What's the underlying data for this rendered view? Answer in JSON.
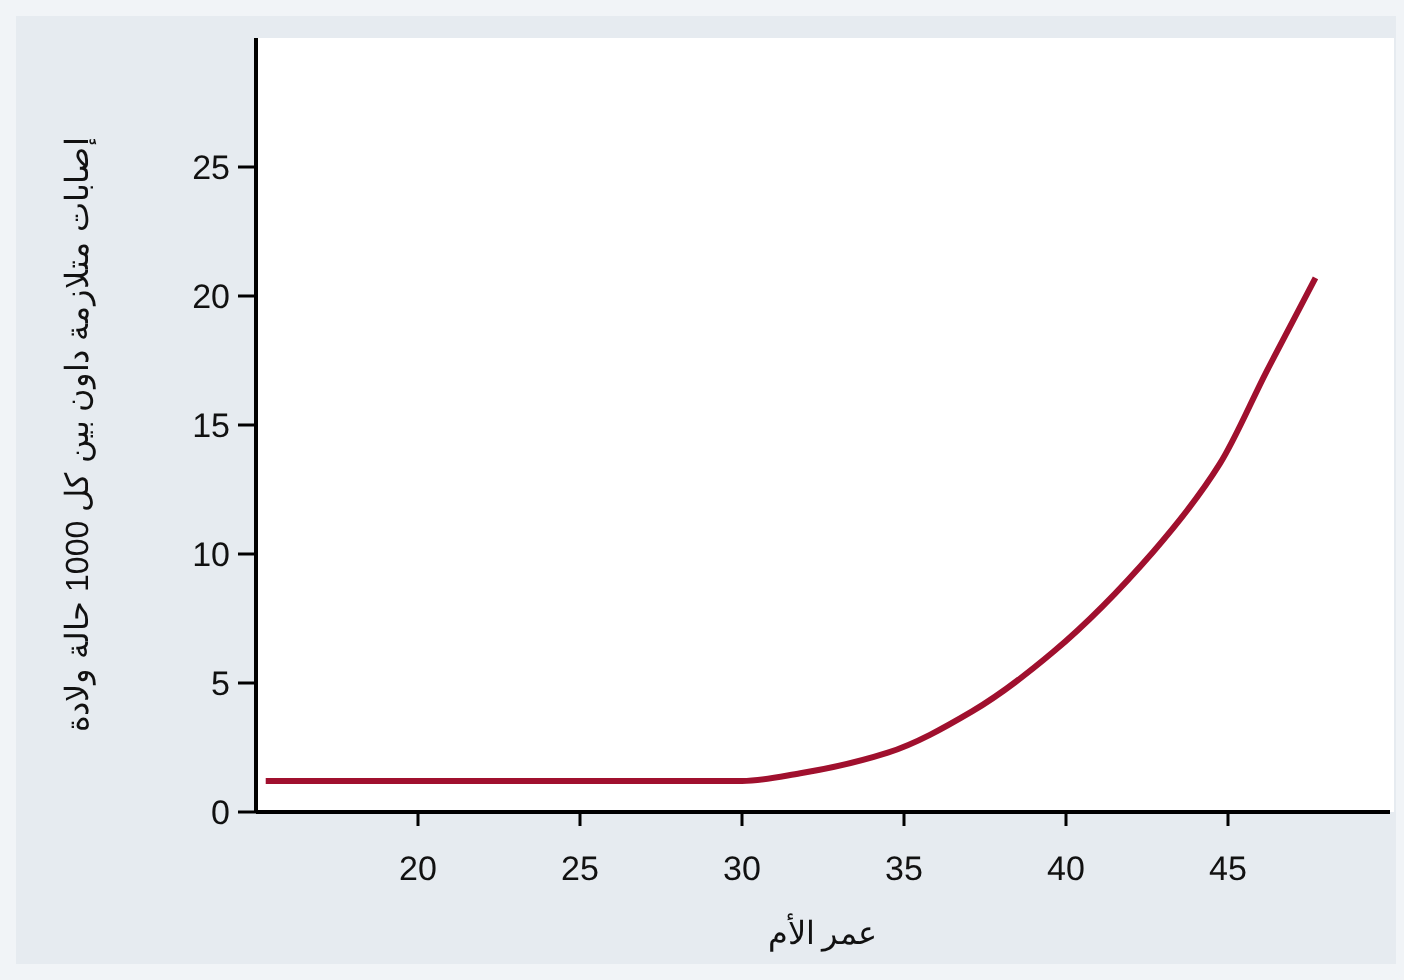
{
  "chart_data": {
    "type": "line",
    "xlabel": "عمر الأم",
    "ylabel": "إصابات متلازمة داون بين كل 1000 حالة ولادة",
    "x": [
      15.3,
      30,
      31.8,
      34.5,
      37.1,
      39.6,
      42.7,
      44.75,
      46.2,
      47.7
    ],
    "series": [
      {
        "color": "#a0102e",
        "values": [
          1.2,
          1.2,
          1.5,
          2.3,
          3.9,
          6.2,
          10.1,
          13.5,
          17.1,
          20.7
        ]
      }
    ],
    "xlim": [
      15,
      50
    ],
    "ylim": [
      0,
      30
    ],
    "xticks": [
      20,
      25,
      30,
      35,
      40,
      45
    ],
    "yticks": [
      0,
      5,
      10,
      15,
      20,
      25
    ],
    "grid": false
  }
}
